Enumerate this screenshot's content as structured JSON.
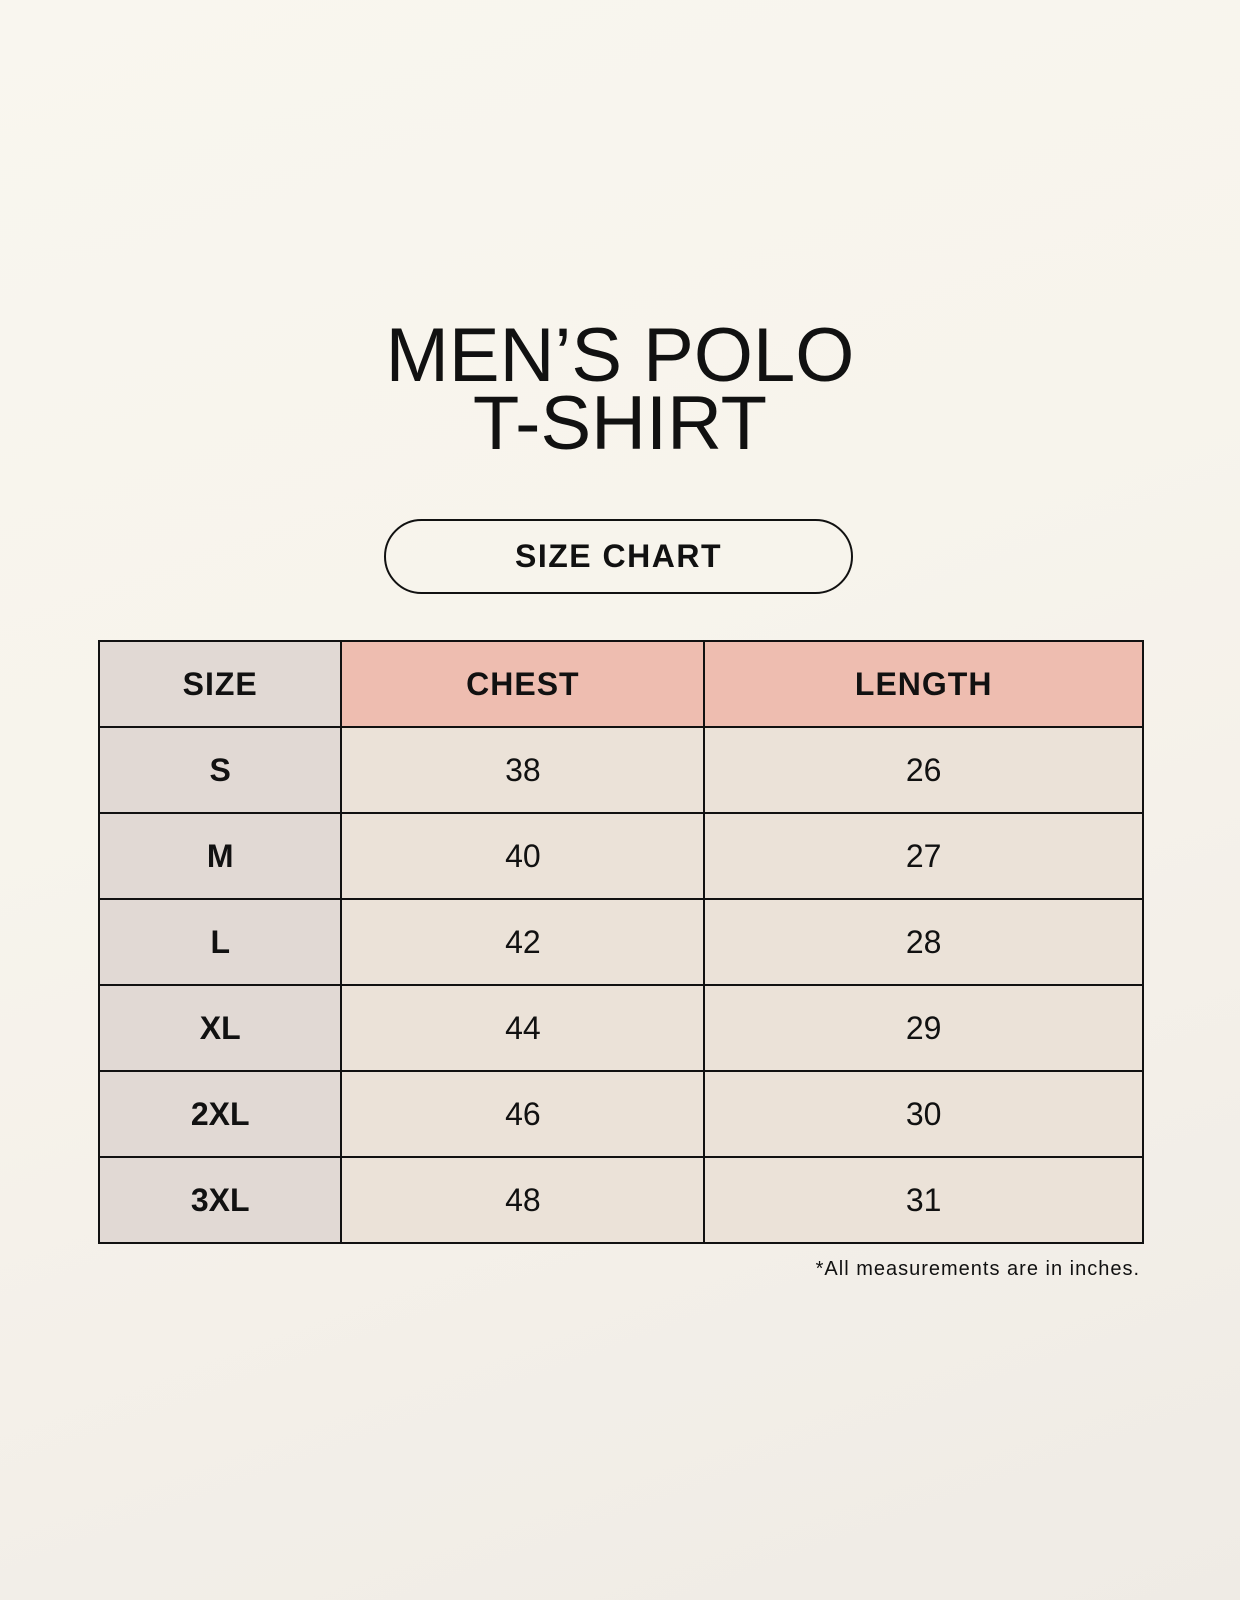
{
  "title_line1": "MEN’S POLO",
  "title_line2": "T-SHIRT",
  "badge": "SIZE CHART",
  "table": {
    "headers": [
      "SIZE",
      "CHEST",
      "LENGTH"
    ],
    "rows": [
      [
        "S",
        "38",
        "26"
      ],
      [
        "M",
        "40",
        "27"
      ],
      [
        "L",
        "42",
        "28"
      ],
      [
        "XL",
        "44",
        "29"
      ],
      [
        "2XL",
        "46",
        "30"
      ],
      [
        "3XL",
        "48",
        "31"
      ]
    ]
  },
  "note": "*All measurements are in inches.",
  "colors": {
    "size_column": "#e1d9d4",
    "header_accent": "#eebdb0",
    "cell": "#ebe2d8",
    "background": "#f8f5ee"
  }
}
